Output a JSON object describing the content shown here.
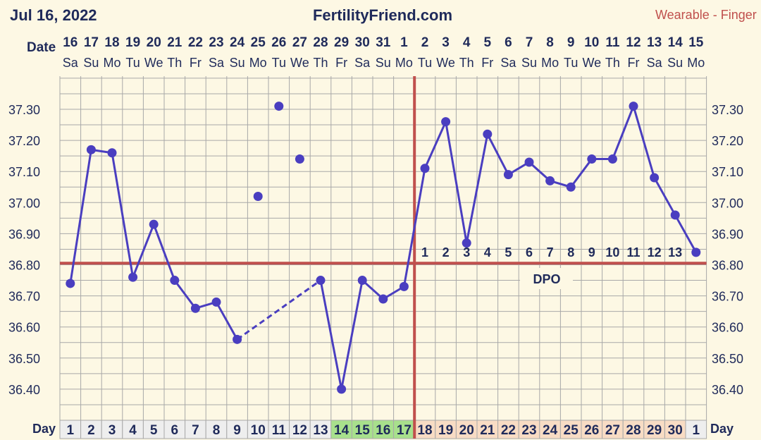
{
  "header": {
    "date": "Jul 16, 2022",
    "site": "FertilityFriend.com",
    "device": "Wearable - Finger"
  },
  "labels": {
    "date_row": "Date",
    "day_row": "Day",
    "dpo": "DPO"
  },
  "colors": {
    "series": "#4a3ec0",
    "reference_lines": "#c0504d",
    "grid": "#a8a8a8",
    "background": "#fdf8e4",
    "follicular_cell": "#eeeeee",
    "fertile_cell": "#a8e08c",
    "luteal_cell": "#f8dcc4"
  },
  "chart_data": {
    "type": "line",
    "dates": [
      "16",
      "17",
      "18",
      "19",
      "20",
      "21",
      "22",
      "23",
      "24",
      "25",
      "26",
      "27",
      "28",
      "29",
      "30",
      "31",
      "1",
      "2",
      "3",
      "4",
      "5",
      "6",
      "7",
      "8",
      "9",
      "10",
      "11",
      "12",
      "13",
      "14",
      "15"
    ],
    "weekdays": [
      "Sa",
      "Su",
      "Mo",
      "Tu",
      "We",
      "Th",
      "Fr",
      "Sa",
      "Su",
      "Mo",
      "Tu",
      "We",
      "Th",
      "Fr",
      "Sa",
      "Su",
      "Mo",
      "Tu",
      "We",
      "Th",
      "Fr",
      "Sa",
      "Su",
      "Mo",
      "Tu",
      "We",
      "Th",
      "Fr",
      "Sa",
      "Su",
      "Mo"
    ],
    "cycle_days": [
      "1",
      "2",
      "3",
      "4",
      "5",
      "6",
      "7",
      "8",
      "9",
      "10",
      "11",
      "12",
      "13",
      "14",
      "15",
      "16",
      "17",
      "18",
      "19",
      "20",
      "21",
      "22",
      "23",
      "24",
      "25",
      "26",
      "27",
      "28",
      "29",
      "30",
      "1"
    ],
    "cycle_day_phase": [
      "f",
      "f",
      "f",
      "f",
      "f",
      "f",
      "f",
      "f",
      "f",
      "f",
      "f",
      "f",
      "f",
      "fertile",
      "fertile",
      "fertile",
      "fertile",
      "l",
      "l",
      "l",
      "l",
      "l",
      "l",
      "l",
      "l",
      "l",
      "l",
      "l",
      "l",
      "l",
      "f"
    ],
    "temperatures": [
      36.74,
      37.17,
      37.16,
      36.76,
      36.93,
      36.75,
      36.66,
      36.68,
      36.56,
      37.02,
      37.31,
      37.14,
      36.75,
      36.4,
      36.75,
      36.69,
      36.73,
      37.11,
      37.26,
      36.87,
      37.22,
      37.09,
      37.13,
      37.07,
      37.05,
      37.14,
      37.14,
      37.31,
      37.08,
      36.96,
      36.84
    ],
    "discarded_indices": [
      9,
      10,
      11
    ],
    "dashed_segment": [
      8,
      12
    ],
    "y_ticks": [
      "37.30",
      "37.20",
      "37.10",
      "37.00",
      "36.90",
      "36.80",
      "36.70",
      "36.60",
      "36.50",
      "36.40"
    ],
    "ylim": [
      36.33,
      37.39
    ],
    "coverline": 36.805,
    "ovulation_index": 16,
    "dpo_numbers": [
      "1",
      "2",
      "3",
      "4",
      "5",
      "6",
      "7",
      "8",
      "9",
      "10",
      "11",
      "12",
      "13"
    ],
    "dpo_start_index": 17
  }
}
